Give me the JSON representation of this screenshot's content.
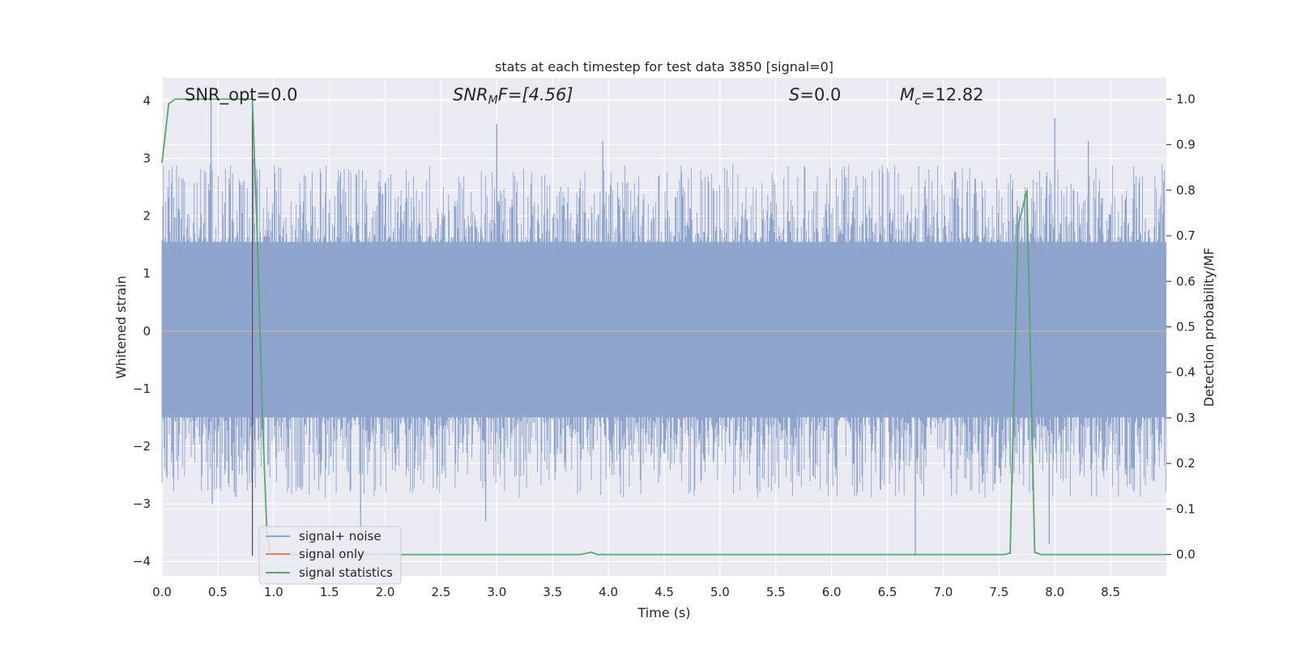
{
  "chart_data": {
    "type": "line",
    "title": "stats at each timestep for test data 3850 [signal=0]",
    "xlabel": "Time (s)",
    "ylabel": "Whitened strain",
    "y2label": "Detection probability/MF",
    "xlim": [
      0.0,
      9.0
    ],
    "ylim": [
      -4.25,
      4.4
    ],
    "y2lim": [
      -0.047,
      1.047
    ],
    "xticks": [
      "0.0",
      "0.5",
      "1.0",
      "1.5",
      "2.0",
      "2.5",
      "3.0",
      "3.5",
      "4.0",
      "4.5",
      "5.0",
      "5.5",
      "6.0",
      "6.5",
      "7.0",
      "7.5",
      "8.0",
      "8.5"
    ],
    "yticks": [
      4,
      3,
      2,
      1,
      0,
      -1,
      -2,
      -3,
      -4
    ],
    "y2ticks": [
      "1.0",
      "0.9",
      "0.8",
      "0.7",
      "0.6",
      "0.5",
      "0.4",
      "0.3",
      "0.2",
      "0.1",
      "0.0"
    ],
    "grid": true,
    "legend_position": "lower-left",
    "annotations": {
      "snr_opt": "SNR_opt=0.0",
      "snr_mf_base": "SNR",
      "snr_mf_sub": "M",
      "snr_mf_rest": "F=[4.56]",
      "s_var": "S",
      "s_rest": "=0.0",
      "mc_base": "M",
      "mc_sub": "c",
      "mc_rest": "=12.82"
    },
    "marker_line": {
      "x": 0.81,
      "y_from": -3.9,
      "y_to": 4.0
    },
    "series": [
      {
        "name": "signal+ noise",
        "color": "#8fa4cc",
        "note": "dense whitened noise, approx. uniform spread",
        "noise_peak_samples": [
          [
            0.44,
            4.0
          ],
          [
            0.45,
            -3.0
          ],
          [
            0.82,
            3.0
          ],
          [
            1.78,
            -3.5
          ],
          [
            2.9,
            -3.3
          ],
          [
            3.0,
            3.6
          ],
          [
            3.95,
            3.3
          ],
          [
            6.75,
            -3.9
          ],
          [
            8.0,
            3.7
          ],
          [
            7.95,
            -3.7
          ],
          [
            8.3,
            3.3
          ]
        ]
      },
      {
        "name": "signal only",
        "color": "#dd8452",
        "values_note": "flat at zero"
      },
      {
        "name": "signal statistics",
        "color": "#55a868",
        "axis": "right",
        "x": [
          0.0,
          0.06,
          0.12,
          0.5,
          0.78,
          0.81,
          0.86,
          0.9,
          0.94,
          0.97,
          3.75,
          3.85,
          3.9,
          7.55,
          7.6,
          7.67,
          7.75,
          7.82,
          7.88,
          9.0
        ],
        "y": [
          0.86,
          0.99,
          1.0,
          1.0,
          1.0,
          1.0,
          0.65,
          0.3,
          0.05,
          0.0,
          0.0,
          0.005,
          0.0,
          0.0,
          0.003,
          0.72,
          0.8,
          0.005,
          0.0,
          0.0
        ]
      }
    ]
  }
}
